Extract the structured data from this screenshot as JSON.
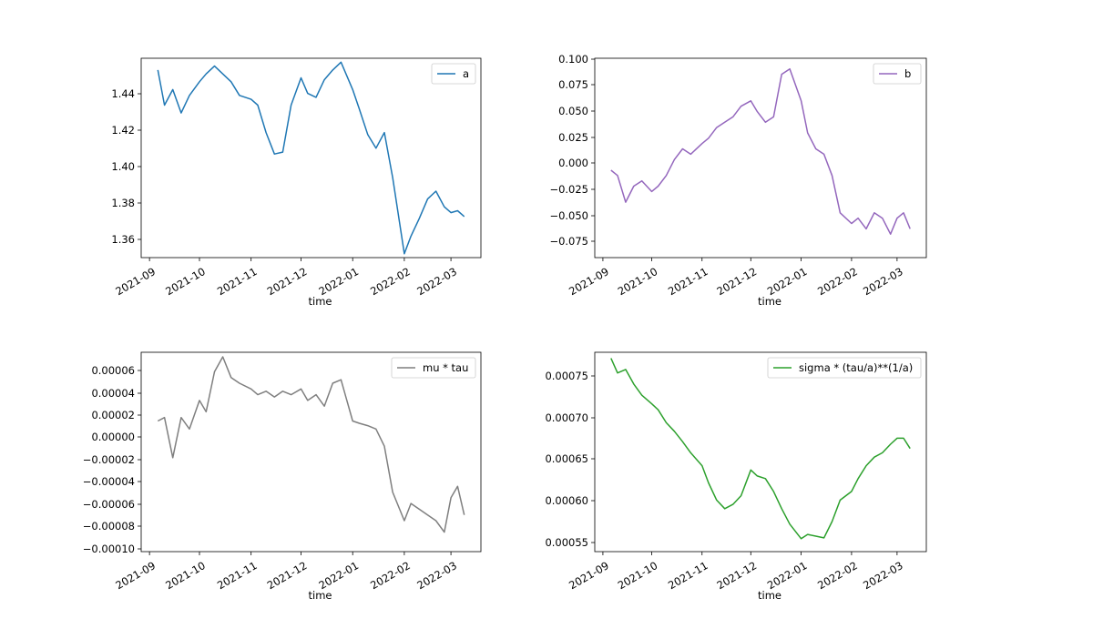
{
  "chart_data": [
    {
      "type": "line",
      "xlabel": "time",
      "ylabel": "",
      "legend_position": "top-right",
      "grid": false,
      "x_ticks": [
        "2021-09",
        "2021-10",
        "2021-11",
        "2021-12",
        "2022-01",
        "2022-02",
        "2022-03"
      ],
      "y_ticks": [
        "1.36",
        "1.38",
        "1.40",
        "1.42",
        "1.44"
      ],
      "ylim": [
        1.354,
        1.456
      ],
      "series": [
        {
          "name": "a",
          "color": "#1f77b4",
          "x": [
            "2021-09-06",
            "2021-09-10",
            "2021-09-15",
            "2021-09-20",
            "2021-09-25",
            "2021-10-01",
            "2021-10-05",
            "2021-10-10",
            "2021-10-15",
            "2021-10-20",
            "2021-10-25",
            "2021-11-01",
            "2021-11-05",
            "2021-11-10",
            "2021-11-15",
            "2021-11-20",
            "2021-11-25",
            "2021-12-01",
            "2021-12-05",
            "2021-12-10",
            "2021-12-15",
            "2021-12-20",
            "2021-12-25",
            "2022-01-01",
            "2022-01-05",
            "2022-01-10",
            "2022-01-15",
            "2022-01-20",
            "2022-01-25",
            "2022-02-01",
            "2022-02-05",
            "2022-02-10",
            "2022-02-15",
            "2022-02-20",
            "2022-02-25",
            "2022-03-01",
            "2022-03-05",
            "2022-03-09"
          ],
          "values": [
            1.45,
            1.432,
            1.44,
            1.428,
            1.437,
            1.444,
            1.448,
            1.452,
            1.448,
            1.444,
            1.437,
            1.435,
            1.432,
            1.418,
            1.407,
            1.408,
            1.432,
            1.446,
            1.438,
            1.436,
            1.445,
            1.45,
            1.454,
            1.44,
            1.43,
            1.417,
            1.41,
            1.418,
            1.395,
            1.356,
            1.365,
            1.374,
            1.384,
            1.388,
            1.38,
            1.377,
            1.378,
            1.375
          ]
        }
      ]
    },
    {
      "type": "line",
      "xlabel": "time",
      "ylabel": "",
      "legend_position": "top-right",
      "grid": false,
      "x_ticks": [
        "2021-09",
        "2021-10",
        "2021-11",
        "2021-12",
        "2022-01",
        "2022-02",
        "2022-03"
      ],
      "y_ticks": [
        "−0.075",
        "−0.050",
        "−0.025",
        "0.000",
        "0.025",
        "0.050",
        "0.075",
        "0.100"
      ],
      "ylim": [
        -0.087,
        0.1
      ],
      "series": [
        {
          "name": "b",
          "color": "#9467bd",
          "x": [
            "2021-09-06",
            "2021-09-10",
            "2021-09-15",
            "2021-09-20",
            "2021-09-25",
            "2021-10-01",
            "2021-10-05",
            "2021-10-10",
            "2021-10-15",
            "2021-10-20",
            "2021-10-25",
            "2021-11-01",
            "2021-11-05",
            "2021-11-10",
            "2021-11-15",
            "2021-11-20",
            "2021-11-25",
            "2021-12-01",
            "2021-12-05",
            "2021-12-10",
            "2021-12-15",
            "2021-12-20",
            "2021-12-25",
            "2022-01-01",
            "2022-01-05",
            "2022-01-10",
            "2022-01-15",
            "2022-01-20",
            "2022-01-25",
            "2022-02-01",
            "2022-02-05",
            "2022-02-10",
            "2022-02-15",
            "2022-02-20",
            "2022-02-25",
            "2022-03-01",
            "2022-03-05",
            "2022-03-09"
          ],
          "values": [
            -0.005,
            -0.01,
            -0.035,
            -0.02,
            -0.015,
            -0.025,
            -0.02,
            -0.01,
            0.005,
            0.015,
            0.01,
            0.02,
            0.025,
            0.035,
            0.04,
            0.045,
            0.055,
            0.06,
            0.05,
            0.04,
            0.045,
            0.085,
            0.09,
            0.06,
            0.03,
            0.015,
            0.01,
            -0.01,
            -0.045,
            -0.055,
            -0.05,
            -0.06,
            -0.045,
            -0.05,
            -0.065,
            -0.05,
            -0.045,
            -0.06
          ]
        }
      ]
    },
    {
      "type": "line",
      "xlabel": "time",
      "ylabel": "",
      "legend_position": "top-right",
      "grid": false,
      "x_ticks": [
        "2021-09",
        "2021-10",
        "2021-11",
        "2021-12",
        "2022-01",
        "2022-02",
        "2022-03"
      ],
      "y_ticks": [
        "−0.00010",
        "−0.00008",
        "−0.00006",
        "−0.00004",
        "−0.00002",
        "0.00000",
        "0.00002",
        "0.00004",
        "0.00006"
      ],
      "ylim": [
        -0.000102,
        7.2e-05
      ],
      "series": [
        {
          "name": "mu * tau",
          "color": "#7f7f7f",
          "x": [
            "2021-09-06",
            "2021-09-10",
            "2021-09-15",
            "2021-09-20",
            "2021-09-25",
            "2021-10-01",
            "2021-10-05",
            "2021-10-10",
            "2021-10-15",
            "2021-10-20",
            "2021-10-25",
            "2021-11-01",
            "2021-11-05",
            "2021-11-10",
            "2021-11-15",
            "2021-11-20",
            "2021-11-25",
            "2021-12-01",
            "2021-12-05",
            "2021-12-10",
            "2021-12-15",
            "2021-12-20",
            "2021-12-25",
            "2022-01-01",
            "2022-01-05",
            "2022-01-10",
            "2022-01-15",
            "2022-01-20",
            "2022-01-25",
            "2022-02-01",
            "2022-02-05",
            "2022-02-10",
            "2022-02-15",
            "2022-02-20",
            "2022-02-25",
            "2022-03-01",
            "2022-03-05",
            "2022-03-09"
          ],
          "values": [
            1.2e-05,
            1.5e-05,
            -2e-05,
            1.5e-05,
            5e-06,
            3e-05,
            2e-05,
            5.5e-05,
            6.8e-05,
            5e-05,
            4.5e-05,
            4e-05,
            3.5e-05,
            3.8e-05,
            3.3e-05,
            3.8e-05,
            3.5e-05,
            4e-05,
            3e-05,
            3.5e-05,
            2.5e-05,
            4.5e-05,
            4.8e-05,
            1.2e-05,
            1e-05,
            8e-06,
            5e-06,
            -1e-05,
            -5e-05,
            -7.5e-05,
            -6e-05,
            -6.5e-05,
            -7e-05,
            -7.5e-05,
            -8.5e-05,
            -5.5e-05,
            -4.5e-05,
            -7e-05
          ]
        }
      ]
    },
    {
      "type": "line",
      "xlabel": "time",
      "ylabel": "",
      "legend_position": "top-right",
      "grid": false,
      "x_ticks": [
        "2021-09",
        "2021-10",
        "2021-11",
        "2021-12",
        "2022-01",
        "2022-02",
        "2022-03"
      ],
      "y_ticks": [
        "0.00055",
        "0.00060",
        "0.00065",
        "0.00070",
        "0.00075"
      ],
      "ylim": [
        0.00054,
        0.000772
      ],
      "series": [
        {
          "name": "sigma * (tau/a)**(1/a)",
          "color": "#2ca02c",
          "x": [
            "2021-09-06",
            "2021-09-10",
            "2021-09-15",
            "2021-09-20",
            "2021-09-25",
            "2021-10-01",
            "2021-10-05",
            "2021-10-10",
            "2021-10-15",
            "2021-10-20",
            "2021-10-25",
            "2021-11-01",
            "2021-11-05",
            "2021-11-10",
            "2021-11-15",
            "2021-11-20",
            "2021-11-25",
            "2021-12-01",
            "2021-12-05",
            "2021-12-10",
            "2021-12-15",
            "2021-12-20",
            "2021-12-25",
            "2022-01-01",
            "2022-01-05",
            "2022-01-10",
            "2022-01-15",
            "2022-01-20",
            "2022-01-25",
            "2022-02-01",
            "2022-02-05",
            "2022-02-10",
            "2022-02-15",
            "2022-02-20",
            "2022-02-25",
            "2022-03-01",
            "2022-03-05",
            "2022-03-09"
          ],
          "values": [
            0.000765,
            0.000748,
            0.000752,
            0.000735,
            0.000722,
            0.000712,
            0.000705,
            0.00069,
            0.00068,
            0.000668,
            0.000655,
            0.00064,
            0.00062,
            0.0006,
            0.00059,
            0.000595,
            0.000605,
            0.000635,
            0.000628,
            0.000625,
            0.00061,
            0.00059,
            0.000572,
            0.000555,
            0.00056,
            0.000558,
            0.000556,
            0.000575,
            0.0006,
            0.00061,
            0.000625,
            0.00064,
            0.00065,
            0.000655,
            0.000665,
            0.000672,
            0.000672,
            0.00066
          ]
        }
      ]
    }
  ]
}
